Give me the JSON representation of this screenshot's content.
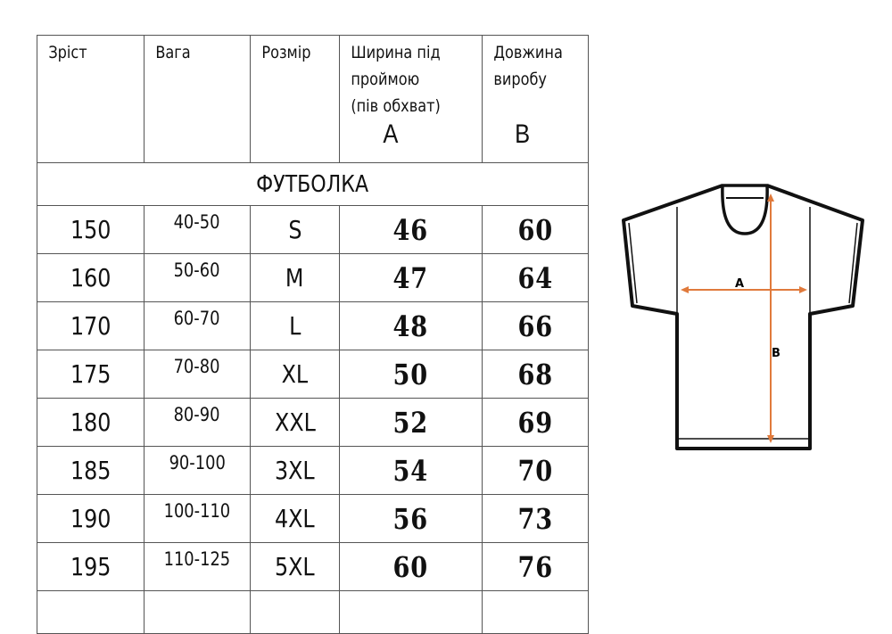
{
  "headers": [
    "Зріст",
    "Вага",
    "Розмір",
    "Ширина під проймою (пів обхват)",
    "Довжина виробу"
  ],
  "header_letters": {
    "a": "A",
    "b": "B"
  },
  "section_title": "ФУТБОЛКА",
  "rows": [
    [
      "150",
      "40-50",
      "S",
      "46",
      "60"
    ],
    [
      "160",
      "50-60",
      "M",
      "47",
      "64"
    ],
    [
      "170",
      "60-70",
      "L",
      "48",
      "66"
    ],
    [
      "175",
      "70-80",
      "XL",
      "50",
      "68"
    ],
    [
      "180",
      "80-90",
      "XXL",
      "52",
      "69"
    ],
    [
      "185",
      "90-100",
      "3XL",
      "54",
      "70"
    ],
    [
      "190",
      "100-110",
      "4XL",
      "56",
      "73"
    ],
    [
      "195",
      "110-125",
      "5XL",
      "60",
      "76"
    ]
  ],
  "diagram": {
    "label_a": "A",
    "label_b": "B",
    "arrow_color": "#e07a3c"
  }
}
